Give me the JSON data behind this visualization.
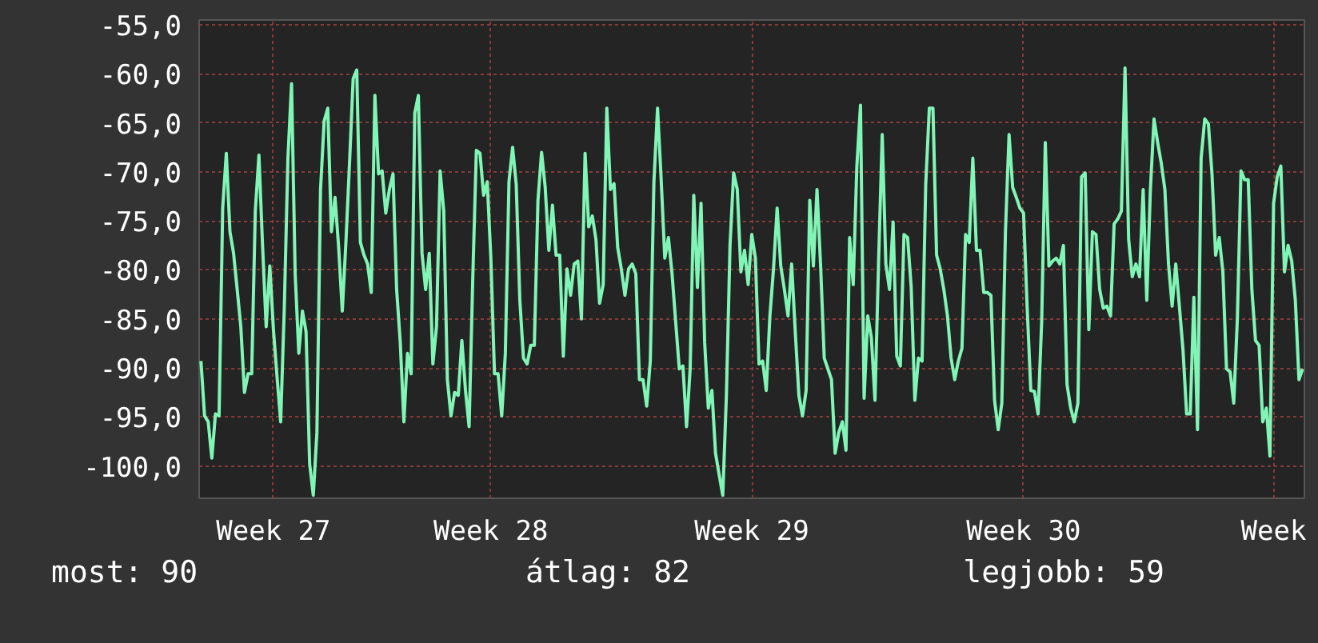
{
  "chart_data": {
    "type": "line",
    "categories": [
      null,
      null,
      null,
      null,
      null,
      null,
      null,
      null,
      null,
      null,
      null,
      null,
      null,
      null,
      null,
      null,
      null,
      null,
      null,
      null,
      "Week 27",
      null,
      null,
      null,
      null,
      null,
      null,
      null,
      null,
      null,
      null,
      null,
      null,
      null,
      null,
      null,
      null,
      null,
      null,
      null,
      null,
      null,
      null,
      null,
      null,
      null,
      null,
      null,
      null,
      null,
      null,
      null,
      null,
      null,
      null,
      null,
      null,
      null,
      null,
      null,
      null,
      null,
      null,
      null,
      null,
      null,
      null,
      null,
      null,
      null,
      null,
      null,
      null,
      null,
      null,
      null,
      null,
      null,
      null,
      null,
      "Week 28",
      null,
      null,
      null,
      null,
      null,
      null,
      null,
      null,
      null,
      null,
      null,
      null,
      null,
      null,
      null,
      null,
      null,
      null,
      null,
      null,
      null,
      null,
      null,
      null,
      null,
      null,
      null,
      null,
      null,
      null,
      null,
      null,
      null,
      null,
      null,
      null,
      null,
      null,
      null,
      null,
      null,
      null,
      null,
      null,
      null,
      null,
      null,
      null,
      null,
      null,
      null,
      null,
      null,
      null,
      null,
      null,
      null,
      null,
      null,
      null,
      null,
      null,
      null,
      null,
      null,
      null,
      null,
      null,
      null,
      null,
      null,
      "Week 29",
      null,
      null,
      null,
      null,
      null,
      null,
      null,
      null,
      null,
      null,
      null,
      null,
      null,
      null,
      null,
      null,
      null,
      null,
      null,
      null,
      null,
      null,
      null,
      null,
      null,
      null,
      null,
      null,
      null,
      null,
      null,
      null,
      null,
      null,
      null,
      null,
      null,
      null,
      null,
      null,
      null,
      null,
      null,
      null,
      null,
      null,
      null,
      null,
      null,
      null,
      null,
      null,
      null,
      null,
      null,
      null,
      null,
      null,
      null,
      null,
      null,
      null,
      null,
      null,
      null,
      null,
      null,
      null,
      null,
      null,
      null,
      null,
      null,
      null,
      "Week 30",
      null,
      null,
      null,
      null,
      null,
      null,
      null,
      null,
      null,
      null,
      null,
      null,
      null,
      null,
      null,
      null,
      null,
      null,
      null,
      null,
      null,
      null,
      null,
      null,
      null,
      null,
      null,
      null,
      null,
      null,
      null,
      null,
      null,
      null,
      null,
      null,
      null,
      null,
      null,
      null,
      null,
      null,
      null,
      null,
      null,
      null,
      null,
      null,
      null,
      null,
      null,
      null,
      null,
      null,
      null,
      null,
      null,
      null,
      null,
      null,
      null,
      null,
      null,
      null,
      null,
      null,
      null,
      null,
      "Week",
      null,
      null,
      null,
      null,
      null,
      null,
      null,
      null
    ],
    "series": [
      {
        "color": "#80f5b5",
        "values": [
          -89.3,
          -94.9,
          -95.5,
          -99.2,
          -94.7,
          -94.9,
          -73.7,
          -68.1,
          -76.1,
          -78.3,
          -82.0,
          -85.8,
          -92.5,
          -90.6,
          -90.6,
          -74.0,
          -68.3,
          -77.5,
          -85.8,
          -79.6,
          -86.1,
          -90.9,
          -95.5,
          -83.9,
          -68.6,
          -61.0,
          -80.4,
          -88.5,
          -84.2,
          -86.3,
          -99.8,
          -103.0,
          -96.6,
          -71.8,
          -64.8,
          -63.5,
          -76.1,
          -72.6,
          -77.7,
          -84.2,
          -77.2,
          -69.1,
          -60.5,
          -59.6,
          -77.2,
          -78.5,
          -79.4,
          -82.3,
          -62.2,
          -70.2,
          -69.9,
          -74.2,
          -71.8,
          -70.2,
          -82.0,
          -87.4,
          -95.5,
          -88.5,
          -90.6,
          -64.0,
          -62.2,
          -78.3,
          -82.0,
          -78.3,
          -89.6,
          -85.8,
          -69.9,
          -74.0,
          -91.2,
          -94.9,
          -92.5,
          -92.8,
          -87.2,
          -92.3,
          -96.0,
          -81.0,
          -67.8,
          -68.1,
          -72.4,
          -71.0,
          -78.8,
          -90.6,
          -90.6,
          -94.9,
          -88.5,
          -71.0,
          -67.5,
          -71.3,
          -83.1,
          -89.0,
          -89.6,
          -87.7,
          -87.7,
          -72.9,
          -68.0,
          -71.6,
          -78.0,
          -73.4,
          -78.5,
          -78.5,
          -88.8,
          -79.9,
          -82.6,
          -79.4,
          -79.1,
          -85.0,
          -68.1,
          -75.6,
          -74.5,
          -76.9,
          -83.4,
          -81.5,
          -63.5,
          -71.8,
          -71.2,
          -77.7,
          -79.9,
          -82.6,
          -79.9,
          -79.4,
          -80.4,
          -91.2,
          -91.2,
          -93.9,
          -89.3,
          -71.0,
          -63.5,
          -70.8,
          -78.8,
          -76.7,
          -80.4,
          -85.3,
          -90.1,
          -89.8,
          -96.0,
          -90.1,
          -72.4,
          -81.8,
          -73.2,
          -87.4,
          -94.1,
          -92.3,
          -98.7,
          -100.9,
          -103.0,
          -92.8,
          -77.5,
          -70.1,
          -71.8,
          -80.2,
          -78.0,
          -81.5,
          -76.4,
          -78.8,
          -89.6,
          -89.3,
          -92.3,
          -84.7,
          -79.9,
          -73.7,
          -79.6,
          -82.0,
          -84.7,
          -79.4,
          -86.3,
          -92.8,
          -94.9,
          -92.3,
          -72.9,
          -79.6,
          -71.8,
          -79.6,
          -89.0,
          -90.1,
          -91.2,
          -98.7,
          -96.6,
          -95.5,
          -98.4,
          -76.7,
          -81.5,
          -69.4,
          -63.2,
          -93.1,
          -84.7,
          -86.9,
          -93.3,
          -79.1,
          -66.2,
          -79.4,
          -82.0,
          -75.1,
          -88.8,
          -89.8,
          -76.4,
          -76.7,
          -81.8,
          -93.3,
          -89.0,
          -89.3,
          -71.3,
          -63.5,
          -63.5,
          -78.5,
          -79.9,
          -82.0,
          -84.7,
          -89.0,
          -91.2,
          -89.3,
          -88.0,
          -76.4,
          -77.2,
          -68.6,
          -78.0,
          -78.0,
          -82.3,
          -82.3,
          -82.6,
          -93.3,
          -96.3,
          -93.6,
          -76.1,
          -66.2,
          -71.6,
          -72.6,
          -73.7,
          -74.2,
          -83.9,
          -92.3,
          -92.4,
          -94.7,
          -85.3,
          -67.0,
          -79.6,
          -79.1,
          -78.8,
          -79.4,
          -77.5,
          -91.7,
          -94.1,
          -95.5,
          -93.6,
          -70.5,
          -70.1,
          -86.1,
          -76.1,
          -76.4,
          -82.0,
          -83.9,
          -83.7,
          -84.7,
          -75.3,
          -74.8,
          -74.0,
          -59.4,
          -76.9,
          -80.7,
          -79.4,
          -80.7,
          -71.8,
          -83.1,
          -71.8,
          -64.6,
          -67.0,
          -69.1,
          -71.8,
          -79.4,
          -83.7,
          -79.4,
          -83.7,
          -88.2,
          -94.7,
          -94.7,
          -82.8,
          -96.3,
          -68.6,
          -64.6,
          -65.1,
          -70.2,
          -78.5,
          -76.7,
          -80.2,
          -90.1,
          -90.4,
          -93.6,
          -85.0,
          -69.9,
          -70.8,
          -70.8,
          -82.0,
          -87.2,
          -87.7,
          -95.5,
          -94.1,
          -99.0,
          -73.2,
          -70.5,
          -69.4,
          -80.2,
          -77.5,
          -79.1,
          -83.1,
          -91.2,
          -90.1
        ]
      }
    ],
    "ylim": [
      -103.3,
      -54.5
    ],
    "yticks": [
      {
        "value": -55,
        "label": "-55,0"
      },
      {
        "value": -60,
        "label": "-60,0"
      },
      {
        "value": -65,
        "label": "-65,0"
      },
      {
        "value": -70,
        "label": "-70,0"
      },
      {
        "value": -75,
        "label": "-75,0"
      },
      {
        "value": -80,
        "label": "-80,0"
      },
      {
        "value": -85,
        "label": "-85,0"
      },
      {
        "value": -90,
        "label": "-90,0"
      },
      {
        "value": -95,
        "label": "-95,0"
      },
      {
        "value": -100,
        "label": "-100,0"
      }
    ],
    "grid": true,
    "annotations": [
      "most: 90",
      "átlag: 82",
      "legjobb: 59"
    ]
  }
}
